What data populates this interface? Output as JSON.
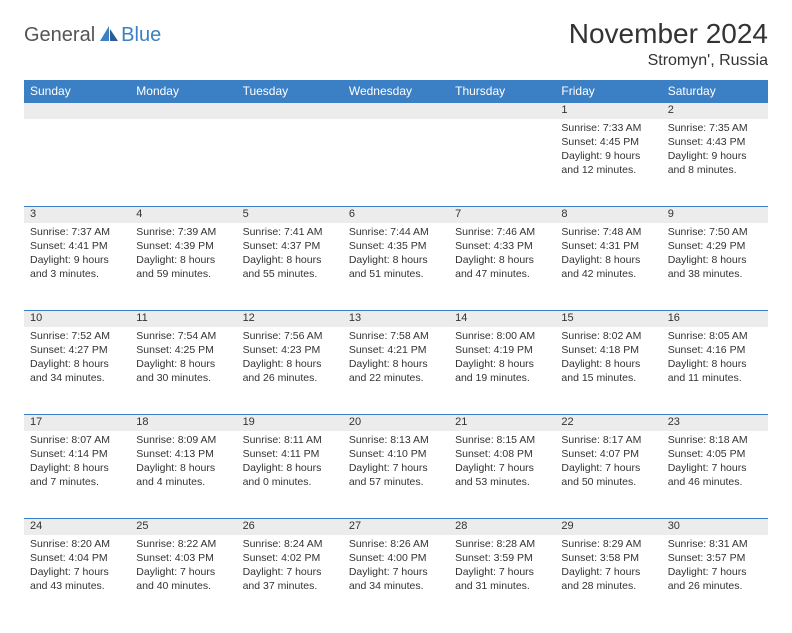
{
  "logo": {
    "general": "General",
    "blue": "Blue"
  },
  "title": "November 2024",
  "location": "Stromyn', Russia",
  "colors": {
    "header_bg": "#3b7fc4",
    "header_text": "#ffffff",
    "border": "#3b7fc4",
    "daynum_bg": "#ececec",
    "page_bg": "#ffffff",
    "text": "#333333"
  },
  "day_labels": [
    "Sunday",
    "Monday",
    "Tuesday",
    "Wednesday",
    "Thursday",
    "Friday",
    "Saturday"
  ],
  "weeks": [
    [
      null,
      null,
      null,
      null,
      null,
      {
        "n": "1",
        "sr": "Sunrise: 7:33 AM",
        "ss": "Sunset: 4:45 PM",
        "dl": "Daylight: 9 hours and 12 minutes."
      },
      {
        "n": "2",
        "sr": "Sunrise: 7:35 AM",
        "ss": "Sunset: 4:43 PM",
        "dl": "Daylight: 9 hours and 8 minutes."
      }
    ],
    [
      {
        "n": "3",
        "sr": "Sunrise: 7:37 AM",
        "ss": "Sunset: 4:41 PM",
        "dl": "Daylight: 9 hours and 3 minutes."
      },
      {
        "n": "4",
        "sr": "Sunrise: 7:39 AM",
        "ss": "Sunset: 4:39 PM",
        "dl": "Daylight: 8 hours and 59 minutes."
      },
      {
        "n": "5",
        "sr": "Sunrise: 7:41 AM",
        "ss": "Sunset: 4:37 PM",
        "dl": "Daylight: 8 hours and 55 minutes."
      },
      {
        "n": "6",
        "sr": "Sunrise: 7:44 AM",
        "ss": "Sunset: 4:35 PM",
        "dl": "Daylight: 8 hours and 51 minutes."
      },
      {
        "n": "7",
        "sr": "Sunrise: 7:46 AM",
        "ss": "Sunset: 4:33 PM",
        "dl": "Daylight: 8 hours and 47 minutes."
      },
      {
        "n": "8",
        "sr": "Sunrise: 7:48 AM",
        "ss": "Sunset: 4:31 PM",
        "dl": "Daylight: 8 hours and 42 minutes."
      },
      {
        "n": "9",
        "sr": "Sunrise: 7:50 AM",
        "ss": "Sunset: 4:29 PM",
        "dl": "Daylight: 8 hours and 38 minutes."
      }
    ],
    [
      {
        "n": "10",
        "sr": "Sunrise: 7:52 AM",
        "ss": "Sunset: 4:27 PM",
        "dl": "Daylight: 8 hours and 34 minutes."
      },
      {
        "n": "11",
        "sr": "Sunrise: 7:54 AM",
        "ss": "Sunset: 4:25 PM",
        "dl": "Daylight: 8 hours and 30 minutes."
      },
      {
        "n": "12",
        "sr": "Sunrise: 7:56 AM",
        "ss": "Sunset: 4:23 PM",
        "dl": "Daylight: 8 hours and 26 minutes."
      },
      {
        "n": "13",
        "sr": "Sunrise: 7:58 AM",
        "ss": "Sunset: 4:21 PM",
        "dl": "Daylight: 8 hours and 22 minutes."
      },
      {
        "n": "14",
        "sr": "Sunrise: 8:00 AM",
        "ss": "Sunset: 4:19 PM",
        "dl": "Daylight: 8 hours and 19 minutes."
      },
      {
        "n": "15",
        "sr": "Sunrise: 8:02 AM",
        "ss": "Sunset: 4:18 PM",
        "dl": "Daylight: 8 hours and 15 minutes."
      },
      {
        "n": "16",
        "sr": "Sunrise: 8:05 AM",
        "ss": "Sunset: 4:16 PM",
        "dl": "Daylight: 8 hours and 11 minutes."
      }
    ],
    [
      {
        "n": "17",
        "sr": "Sunrise: 8:07 AM",
        "ss": "Sunset: 4:14 PM",
        "dl": "Daylight: 8 hours and 7 minutes."
      },
      {
        "n": "18",
        "sr": "Sunrise: 8:09 AM",
        "ss": "Sunset: 4:13 PM",
        "dl": "Daylight: 8 hours and 4 minutes."
      },
      {
        "n": "19",
        "sr": "Sunrise: 8:11 AM",
        "ss": "Sunset: 4:11 PM",
        "dl": "Daylight: 8 hours and 0 minutes."
      },
      {
        "n": "20",
        "sr": "Sunrise: 8:13 AM",
        "ss": "Sunset: 4:10 PM",
        "dl": "Daylight: 7 hours and 57 minutes."
      },
      {
        "n": "21",
        "sr": "Sunrise: 8:15 AM",
        "ss": "Sunset: 4:08 PM",
        "dl": "Daylight: 7 hours and 53 minutes."
      },
      {
        "n": "22",
        "sr": "Sunrise: 8:17 AM",
        "ss": "Sunset: 4:07 PM",
        "dl": "Daylight: 7 hours and 50 minutes."
      },
      {
        "n": "23",
        "sr": "Sunrise: 8:18 AM",
        "ss": "Sunset: 4:05 PM",
        "dl": "Daylight: 7 hours and 46 minutes."
      }
    ],
    [
      {
        "n": "24",
        "sr": "Sunrise: 8:20 AM",
        "ss": "Sunset: 4:04 PM",
        "dl": "Daylight: 7 hours and 43 minutes."
      },
      {
        "n": "25",
        "sr": "Sunrise: 8:22 AM",
        "ss": "Sunset: 4:03 PM",
        "dl": "Daylight: 7 hours and 40 minutes."
      },
      {
        "n": "26",
        "sr": "Sunrise: 8:24 AM",
        "ss": "Sunset: 4:02 PM",
        "dl": "Daylight: 7 hours and 37 minutes."
      },
      {
        "n": "27",
        "sr": "Sunrise: 8:26 AM",
        "ss": "Sunset: 4:00 PM",
        "dl": "Daylight: 7 hours and 34 minutes."
      },
      {
        "n": "28",
        "sr": "Sunrise: 8:28 AM",
        "ss": "Sunset: 3:59 PM",
        "dl": "Daylight: 7 hours and 31 minutes."
      },
      {
        "n": "29",
        "sr": "Sunrise: 8:29 AM",
        "ss": "Sunset: 3:58 PM",
        "dl": "Daylight: 7 hours and 28 minutes."
      },
      {
        "n": "30",
        "sr": "Sunrise: 8:31 AM",
        "ss": "Sunset: 3:57 PM",
        "dl": "Daylight: 7 hours and 26 minutes."
      }
    ]
  ]
}
